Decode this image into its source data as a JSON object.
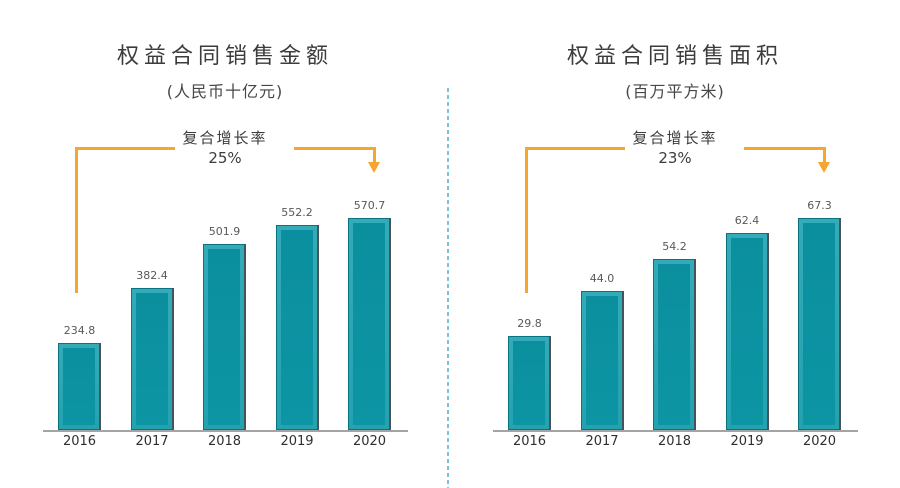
{
  "chart_data": [
    {
      "type": "bar",
      "title": "权益合同销售金额",
      "subtitle": "(人民币十亿元)",
      "cagr_label": "复合增长率",
      "cagr_value": "25%",
      "categories": [
        "2016",
        "2017",
        "2018",
        "2019",
        "2020"
      ],
      "values": [
        234.8,
        382.4,
        501.9,
        552.2,
        570.7
      ],
      "value_labels": [
        "234.8",
        "382.4",
        "501.9",
        "552.2",
        "570.7"
      ],
      "xlabel": "",
      "ylabel": "",
      "ylim": [
        0,
        600
      ],
      "grid": false,
      "legend": "none"
    },
    {
      "type": "bar",
      "title": "权益合同销售面积",
      "subtitle": "(百万平方米)",
      "cagr_label": "复合增长率",
      "cagr_value": "23%",
      "categories": [
        "2016",
        "2017",
        "2018",
        "2019",
        "2020"
      ],
      "values": [
        29.8,
        44.0,
        54.2,
        62.4,
        67.3
      ],
      "value_labels": [
        "29.8",
        "44.0",
        "54.2",
        "62.4",
        "67.3"
      ],
      "xlabel": "",
      "ylabel": "",
      "ylim": [
        0,
        70
      ],
      "grid": false,
      "legend": "none"
    }
  ],
  "colors": {
    "bar_face": "#0D95A4",
    "bar_bevel_light": "#2AA6B3",
    "bar_outline": "#0A7280",
    "bar_shadow_right": "#47535A",
    "arrow_orange": "#F6A52E",
    "divider_blue": "#7CC2D4",
    "axis_gray": "#A4A4A4",
    "title_text": "#3C3C3C",
    "value_label_text": "#595959",
    "year_label_text": "#2F2F2F"
  }
}
